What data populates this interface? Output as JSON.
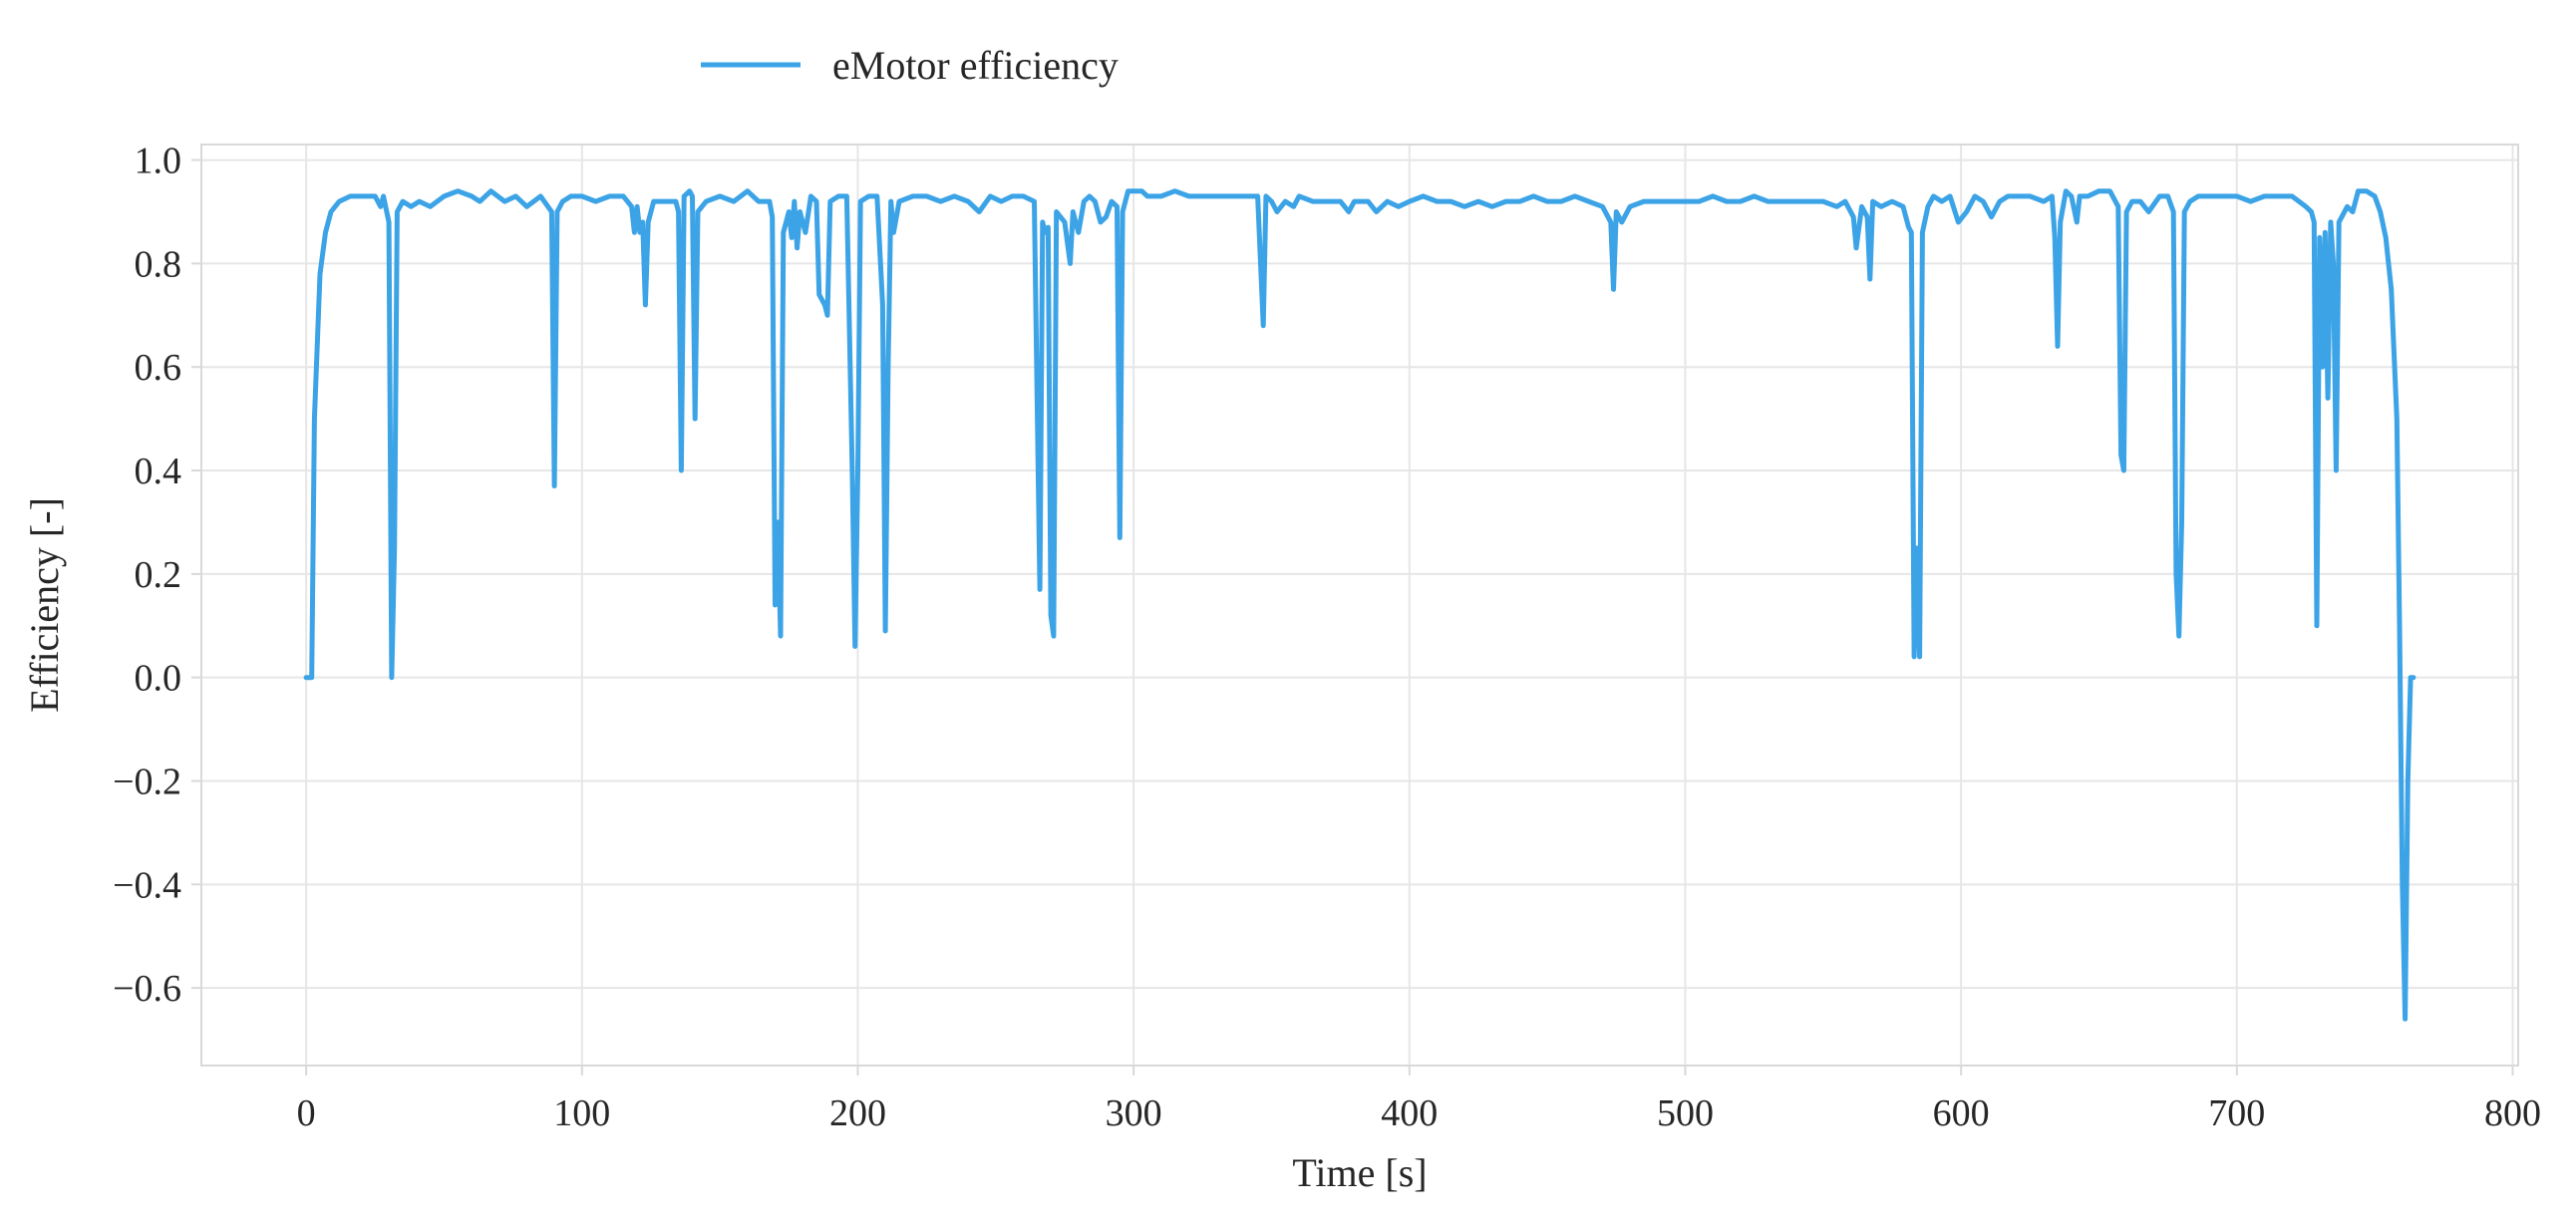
{
  "chart_data": {
    "type": "line",
    "title": "",
    "xlabel": "Time [s]",
    "ylabel": "Efficiency [-]",
    "xlim": [
      -38,
      802
    ],
    "ylim": [
      -0.75,
      1.03
    ],
    "xticks": [
      0,
      100,
      200,
      300,
      400,
      500,
      600,
      700,
      800
    ],
    "xtick_labels": [
      "0",
      "100",
      "200",
      "300",
      "400",
      "500",
      "600",
      "700",
      "800"
    ],
    "yticks": [
      1.0,
      0.8,
      0.6,
      0.4,
      0.2,
      0.0,
      -0.2,
      -0.4,
      -0.6
    ],
    "ytick_labels": [
      "1.0",
      "0.8",
      "0.6",
      "0.4",
      "0.2",
      "0.0",
      "−0.2",
      "−0.4",
      "−0.6"
    ],
    "grid": true,
    "legend_position": "top-center",
    "series": [
      {
        "name": "eMotor efficiency",
        "color": "#3ba3e6",
        "points": [
          [
            0,
            0.0
          ],
          [
            2,
            0.0
          ],
          [
            3,
            0.5
          ],
          [
            5,
            0.78
          ],
          [
            7,
            0.86
          ],
          [
            9,
            0.9
          ],
          [
            12,
            0.92
          ],
          [
            16,
            0.93
          ],
          [
            20,
            0.93
          ],
          [
            25,
            0.93
          ],
          [
            27,
            0.91
          ],
          [
            28,
            0.93
          ],
          [
            30,
            0.88
          ],
          [
            31,
            0.0
          ],
          [
            32,
            0.25
          ],
          [
            33,
            0.9
          ],
          [
            35,
            0.92
          ],
          [
            38,
            0.91
          ],
          [
            41,
            0.92
          ],
          [
            45,
            0.91
          ],
          [
            50,
            0.93
          ],
          [
            55,
            0.94
          ],
          [
            60,
            0.93
          ],
          [
            63,
            0.92
          ],
          [
            67,
            0.94
          ],
          [
            72,
            0.92
          ],
          [
            76,
            0.93
          ],
          [
            80,
            0.91
          ],
          [
            85,
            0.93
          ],
          [
            89,
            0.9
          ],
          [
            90,
            0.37
          ],
          [
            91,
            0.9
          ],
          [
            93,
            0.92
          ],
          [
            96,
            0.93
          ],
          [
            100,
            0.93
          ],
          [
            105,
            0.92
          ],
          [
            110,
            0.93
          ],
          [
            115,
            0.93
          ],
          [
            118,
            0.91
          ],
          [
            119,
            0.86
          ],
          [
            120,
            0.91
          ],
          [
            121,
            0.86
          ],
          [
            122,
            0.88
          ],
          [
            123,
            0.72
          ],
          [
            124,
            0.88
          ],
          [
            126,
            0.92
          ],
          [
            130,
            0.92
          ],
          [
            134,
            0.92
          ],
          [
            135,
            0.9
          ],
          [
            136,
            0.4
          ],
          [
            137,
            0.93
          ],
          [
            139,
            0.94
          ],
          [
            140,
            0.93
          ],
          [
            141,
            0.5
          ],
          [
            142,
            0.9
          ],
          [
            145,
            0.92
          ],
          [
            150,
            0.93
          ],
          [
            155,
            0.92
          ],
          [
            160,
            0.94
          ],
          [
            164,
            0.92
          ],
          [
            168,
            0.92
          ],
          [
            169,
            0.89
          ],
          [
            170,
            0.14
          ],
          [
            171,
            0.3
          ],
          [
            172,
            0.08
          ],
          [
            173,
            0.86
          ],
          [
            175,
            0.9
          ],
          [
            176,
            0.85
          ],
          [
            177,
            0.92
          ],
          [
            178,
            0.83
          ],
          [
            179,
            0.9
          ],
          [
            181,
            0.86
          ],
          [
            183,
            0.93
          ],
          [
            185,
            0.92
          ],
          [
            186,
            0.74
          ],
          [
            188,
            0.72
          ],
          [
            189,
            0.7
          ],
          [
            190,
            0.92
          ],
          [
            193,
            0.93
          ],
          [
            196,
            0.93
          ],
          [
            198,
            0.4
          ],
          [
            199,
            0.06
          ],
          [
            200,
            0.4
          ],
          [
            201,
            0.92
          ],
          [
            204,
            0.93
          ],
          [
            207,
            0.93
          ],
          [
            209,
            0.72
          ],
          [
            210,
            0.09
          ],
          [
            211,
            0.6
          ],
          [
            212,
            0.92
          ],
          [
            213,
            0.86
          ],
          [
            215,
            0.92
          ],
          [
            220,
            0.93
          ],
          [
            225,
            0.93
          ],
          [
            230,
            0.92
          ],
          [
            235,
            0.93
          ],
          [
            240,
            0.92
          ],
          [
            244,
            0.9
          ],
          [
            248,
            0.93
          ],
          [
            252,
            0.92
          ],
          [
            256,
            0.93
          ],
          [
            260,
            0.93
          ],
          [
            264,
            0.92
          ],
          [
            266,
            0.17
          ],
          [
            267,
            0.88
          ],
          [
            268,
            0.86
          ],
          [
            269,
            0.87
          ],
          [
            270,
            0.12
          ],
          [
            271,
            0.08
          ],
          [
            272,
            0.9
          ],
          [
            275,
            0.88
          ],
          [
            277,
            0.8
          ],
          [
            278,
            0.9
          ],
          [
            280,
            0.86
          ],
          [
            282,
            0.92
          ],
          [
            284,
            0.93
          ],
          [
            286,
            0.92
          ],
          [
            288,
            0.88
          ],
          [
            290,
            0.89
          ],
          [
            292,
            0.92
          ],
          [
            294,
            0.91
          ],
          [
            295,
            0.27
          ],
          [
            296,
            0.9
          ],
          [
            298,
            0.94
          ],
          [
            300,
            0.94
          ],
          [
            303,
            0.94
          ],
          [
            305,
            0.93
          ],
          [
            310,
            0.93
          ],
          [
            315,
            0.94
          ],
          [
            320,
            0.93
          ],
          [
            325,
            0.93
          ],
          [
            330,
            0.93
          ],
          [
            335,
            0.93
          ],
          [
            340,
            0.93
          ],
          [
            345,
            0.93
          ],
          [
            347,
            0.68
          ],
          [
            348,
            0.93
          ],
          [
            350,
            0.92
          ],
          [
            352,
            0.9
          ],
          [
            355,
            0.92
          ],
          [
            358,
            0.91
          ],
          [
            360,
            0.93
          ],
          [
            365,
            0.92
          ],
          [
            370,
            0.92
          ],
          [
            375,
            0.92
          ],
          [
            378,
            0.9
          ],
          [
            380,
            0.92
          ],
          [
            385,
            0.92
          ],
          [
            388,
            0.9
          ],
          [
            392,
            0.92
          ],
          [
            396,
            0.91
          ],
          [
            400,
            0.92
          ],
          [
            405,
            0.93
          ],
          [
            410,
            0.92
          ],
          [
            415,
            0.92
          ],
          [
            420,
            0.91
          ],
          [
            425,
            0.92
          ],
          [
            430,
            0.91
          ],
          [
            435,
            0.92
          ],
          [
            440,
            0.92
          ],
          [
            445,
            0.93
          ],
          [
            450,
            0.92
          ],
          [
            455,
            0.92
          ],
          [
            460,
            0.93
          ],
          [
            465,
            0.92
          ],
          [
            470,
            0.91
          ],
          [
            473,
            0.88
          ],
          [
            474,
            0.75
          ],
          [
            475,
            0.9
          ],
          [
            477,
            0.88
          ],
          [
            480,
            0.91
          ],
          [
            485,
            0.92
          ],
          [
            490,
            0.92
          ],
          [
            495,
            0.92
          ],
          [
            500,
            0.92
          ],
          [
            505,
            0.92
          ],
          [
            510,
            0.93
          ],
          [
            515,
            0.92
          ],
          [
            520,
            0.92
          ],
          [
            525,
            0.93
          ],
          [
            530,
            0.92
          ],
          [
            535,
            0.92
          ],
          [
            540,
            0.92
          ],
          [
            545,
            0.92
          ],
          [
            550,
            0.92
          ],
          [
            555,
            0.91
          ],
          [
            558,
            0.92
          ],
          [
            561,
            0.89
          ],
          [
            562,
            0.83
          ],
          [
            564,
            0.91
          ],
          [
            566,
            0.89
          ],
          [
            567,
            0.77
          ],
          [
            568,
            0.92
          ],
          [
            571,
            0.91
          ],
          [
            575,
            0.92
          ],
          [
            579,
            0.91
          ],
          [
            581,
            0.87
          ],
          [
            582,
            0.86
          ],
          [
            583,
            0.04
          ],
          [
            584,
            0.25
          ],
          [
            585,
            0.04
          ],
          [
            586,
            0.86
          ],
          [
            588,
            0.91
          ],
          [
            590,
            0.93
          ],
          [
            593,
            0.92
          ],
          [
            596,
            0.93
          ],
          [
            599,
            0.88
          ],
          [
            602,
            0.9
          ],
          [
            605,
            0.93
          ],
          [
            608,
            0.92
          ],
          [
            611,
            0.89
          ],
          [
            614,
            0.92
          ],
          [
            617,
            0.93
          ],
          [
            620,
            0.93
          ],
          [
            625,
            0.93
          ],
          [
            630,
            0.92
          ],
          [
            633,
            0.93
          ],
          [
            634,
            0.85
          ],
          [
            635,
            0.64
          ],
          [
            636,
            0.88
          ],
          [
            638,
            0.94
          ],
          [
            640,
            0.93
          ],
          [
            642,
            0.88
          ],
          [
            643,
            0.93
          ],
          [
            646,
            0.93
          ],
          [
            650,
            0.94
          ],
          [
            654,
            0.94
          ],
          [
            657,
            0.91
          ],
          [
            658,
            0.43
          ],
          [
            659,
            0.4
          ],
          [
            660,
            0.9
          ],
          [
            662,
            0.92
          ],
          [
            665,
            0.92
          ],
          [
            668,
            0.9
          ],
          [
            672,
            0.93
          ],
          [
            675,
            0.93
          ],
          [
            677,
            0.9
          ],
          [
            678,
            0.2
          ],
          [
            679,
            0.08
          ],
          [
            680,
            0.3
          ],
          [
            681,
            0.9
          ],
          [
            683,
            0.92
          ],
          [
            686,
            0.93
          ],
          [
            690,
            0.93
          ],
          [
            695,
            0.93
          ],
          [
            700,
            0.93
          ],
          [
            705,
            0.92
          ],
          [
            710,
            0.93
          ],
          [
            715,
            0.93
          ],
          [
            720,
            0.93
          ],
          [
            725,
            0.91
          ],
          [
            727,
            0.9
          ],
          [
            728,
            0.88
          ],
          [
            729,
            0.1
          ],
          [
            730,
            0.85
          ],
          [
            731,
            0.6
          ],
          [
            732,
            0.86
          ],
          [
            733,
            0.54
          ],
          [
            734,
            0.88
          ],
          [
            735,
            0.8
          ],
          [
            736,
            0.4
          ],
          [
            737,
            0.88
          ],
          [
            740,
            0.91
          ],
          [
            742,
            0.9
          ],
          [
            744,
            0.94
          ],
          [
            747,
            0.94
          ],
          [
            750,
            0.93
          ],
          [
            752,
            0.9
          ],
          [
            754,
            0.85
          ],
          [
            756,
            0.75
          ],
          [
            758,
            0.5
          ],
          [
            759,
            0.1
          ],
          [
            760,
            -0.4
          ],
          [
            761,
            -0.66
          ],
          [
            762,
            -0.2
          ],
          [
            763,
            0.0
          ],
          [
            764,
            0.0
          ]
        ]
      }
    ]
  }
}
